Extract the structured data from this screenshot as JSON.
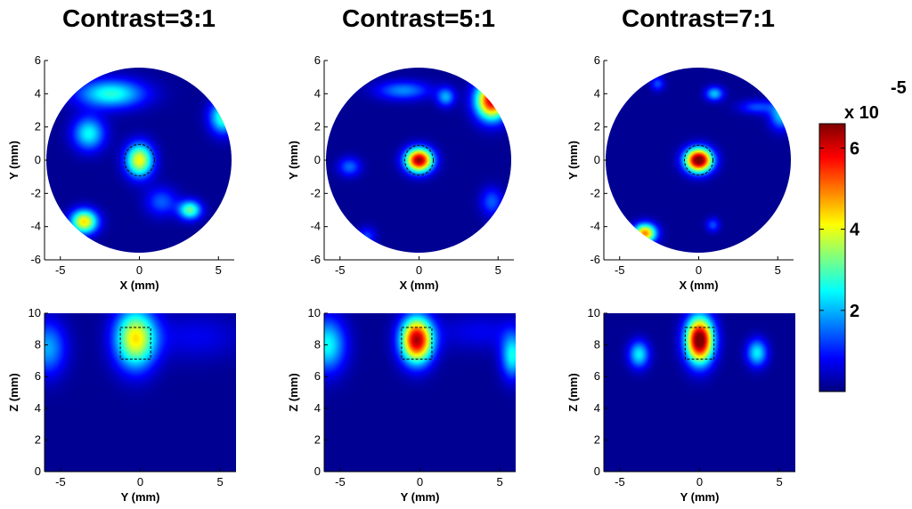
{
  "chart_data": {
    "type": "heatmap",
    "colorbar": {
      "ticks": [
        "2",
        "4",
        "6"
      ],
      "tick_values": [
        2,
        4,
        6
      ],
      "range": [
        0,
        6.6
      ],
      "multiplier": "x 10",
      "exponent": "-5",
      "colormap": "jet"
    },
    "panels": [
      {
        "title": "Contrast=3:1",
        "top": {
          "xlabel": "X (mm)",
          "ylabel": "Y (mm)",
          "xticks": [
            "-5",
            "0",
            "5"
          ],
          "yticks": [
            "-6",
            "-4",
            "-2",
            "0",
            "2",
            "4",
            "6"
          ],
          "xlim": [
            -6,
            6
          ],
          "ylim": [
            -6,
            6
          ],
          "blobs": [
            {
              "x": 0,
              "y": 0,
              "sx": 0.6,
              "sy": 0.7,
              "amp": 4.0
            },
            {
              "x": -3.5,
              "y": -3.7,
              "sx": 0.6,
              "sy": 0.5,
              "amp": 4.2
            },
            {
              "x": -1.8,
              "y": 4.0,
              "sx": 1.5,
              "sy": 0.6,
              "amp": 2.6
            },
            {
              "x": -3.2,
              "y": 1.6,
              "sx": 0.7,
              "sy": 0.7,
              "amp": 2.4
            },
            {
              "x": 3.2,
              "y": -3.0,
              "sx": 0.5,
              "sy": 0.4,
              "amp": 3.0
            },
            {
              "x": 5.3,
              "y": 2.6,
              "sx": 0.6,
              "sy": 0.7,
              "amp": 2.8
            },
            {
              "x": 1.4,
              "y": -2.5,
              "sx": 0.7,
              "sy": 0.6,
              "amp": 1.3
            }
          ],
          "roi": {
            "x": 0,
            "y": 0,
            "rx": 0.95,
            "ry": 0.95
          }
        },
        "bottom": {
          "xlabel": "Y (mm)",
          "ylabel": "Z (mm)",
          "xticks": [
            "-5",
            "0",
            "5"
          ],
          "yticks": [
            "0",
            "2",
            "4",
            "6",
            "8",
            "10"
          ],
          "xlim": [
            -6,
            6
          ],
          "ylim": [
            0,
            10
          ],
          "blobs": [
            {
              "x": -0.3,
              "y": 8.4,
              "sx": 0.9,
              "sy": 1.3,
              "amp": 4.1
            },
            {
              "x": -5.8,
              "y": 7.8,
              "sx": 0.8,
              "sy": 1.2,
              "amp": 1.8
            },
            {
              "x": 3.5,
              "y": 8.5,
              "sx": 2.0,
              "sy": 1.0,
              "amp": 0.6
            }
          ],
          "roi": {
            "x": -0.3,
            "y": 8.1,
            "w": 1.9,
            "h": 2.0
          }
        }
      },
      {
        "title": "Contrast=5:1",
        "top": {
          "xlabel": "X (mm)",
          "ylabel": "Y (mm)",
          "xticks": [
            "-5",
            "0",
            "5"
          ],
          "yticks": [
            "-6",
            "-4",
            "-2",
            "0",
            "2",
            "4",
            "6"
          ],
          "xlim": [
            -6,
            6
          ],
          "ylim": [
            -6,
            6
          ],
          "blobs": [
            {
              "x": 0,
              "y": 0,
              "sx": 0.6,
              "sy": 0.5,
              "amp": 6.4
            },
            {
              "x": 4.6,
              "y": 3.6,
              "sx": 0.7,
              "sy": 0.8,
              "amp": 6.0
            },
            {
              "x": -1.0,
              "y": 4.2,
              "sx": 1.2,
              "sy": 0.4,
              "amp": 1.6
            },
            {
              "x": 1.7,
              "y": 3.8,
              "sx": 0.4,
              "sy": 0.4,
              "amp": 1.8
            },
            {
              "x": -4.4,
              "y": -0.4,
              "sx": 0.5,
              "sy": 0.4,
              "amp": 1.4
            },
            {
              "x": 4.6,
              "y": -2.5,
              "sx": 0.5,
              "sy": 0.6,
              "amp": 1.3
            },
            {
              "x": -3.3,
              "y": -4.6,
              "sx": 0.4,
              "sy": 0.4,
              "amp": 1.1
            }
          ],
          "roi": {
            "x": 0,
            "y": 0,
            "rx": 0.9,
            "ry": 0.9
          }
        },
        "bottom": {
          "xlabel": "Y (mm)",
          "ylabel": "Z (mm)",
          "xticks": [
            "-5",
            "0",
            "5"
          ],
          "yticks": [
            "0",
            "2",
            "4",
            "6",
            "8",
            "10"
          ],
          "xlim": [
            -6,
            6
          ],
          "ylim": [
            0,
            10
          ],
          "blobs": [
            {
              "x": -0.2,
              "y": 8.3,
              "sx": 0.7,
              "sy": 1.0,
              "amp": 6.2
            },
            {
              "x": -5.8,
              "y": 8.0,
              "sx": 0.8,
              "sy": 1.2,
              "amp": 2.4
            },
            {
              "x": 5.8,
              "y": 7.3,
              "sx": 0.5,
              "sy": 1.0,
              "amp": 2.4
            },
            {
              "x": 3.8,
              "y": 8.8,
              "sx": 2.0,
              "sy": 0.8,
              "amp": 0.6
            }
          ],
          "roi": {
            "x": -0.2,
            "y": 8.1,
            "w": 1.9,
            "h": 2.0
          }
        }
      },
      {
        "title": "Contrast=7:1",
        "top": {
          "xlabel": "X (mm)",
          "ylabel": "Y (mm)",
          "xticks": [
            "-5",
            "0",
            "5"
          ],
          "yticks": [
            "-6",
            "-4",
            "-2",
            "0",
            "2",
            "4",
            "6"
          ],
          "xlim": [
            -6,
            6
          ],
          "ylim": [
            -6,
            6
          ],
          "blobs": [
            {
              "x": 0,
              "y": 0,
              "sx": 0.6,
              "sy": 0.5,
              "amp": 7.0
            },
            {
              "x": -3.4,
              "y": -4.4,
              "sx": 0.5,
              "sy": 0.4,
              "amp": 4.8
            },
            {
              "x": 1.0,
              "y": 4.0,
              "sx": 0.4,
              "sy": 0.3,
              "amp": 2.0
            },
            {
              "x": 5.2,
              "y": 2.7,
              "sx": 0.5,
              "sy": 0.6,
              "amp": 2.0
            },
            {
              "x": 3.7,
              "y": 3.2,
              "sx": 0.8,
              "sy": 0.3,
              "amp": 1.2
            },
            {
              "x": -2.6,
              "y": 4.6,
              "sx": 0.3,
              "sy": 0.3,
              "amp": 1.2
            },
            {
              "x": 0.9,
              "y": -3.9,
              "sx": 0.3,
              "sy": 0.3,
              "amp": 1.2
            }
          ],
          "roi": {
            "x": 0,
            "y": 0,
            "rx": 0.9,
            "ry": 0.9
          }
        },
        "bottom": {
          "xlabel": "Y (mm)",
          "ylabel": "Z (mm)",
          "xticks": [
            "-5",
            "0",
            "5"
          ],
          "yticks": [
            "0",
            "2",
            "4",
            "6",
            "8",
            "10"
          ],
          "xlim": [
            -6,
            6
          ],
          "ylim": [
            0,
            10
          ],
          "blobs": [
            {
              "x": 0,
              "y": 8.3,
              "sx": 0.6,
              "sy": 1.0,
              "amp": 7.0
            },
            {
              "x": -3.8,
              "y": 7.4,
              "sx": 0.45,
              "sy": 0.6,
              "amp": 2.3
            },
            {
              "x": 3.6,
              "y": 7.5,
              "sx": 0.45,
              "sy": 0.6,
              "amp": 2.3
            }
          ],
          "roi": {
            "x": 0,
            "y": 8.1,
            "w": 1.8,
            "h": 2.0
          }
        }
      }
    ]
  }
}
